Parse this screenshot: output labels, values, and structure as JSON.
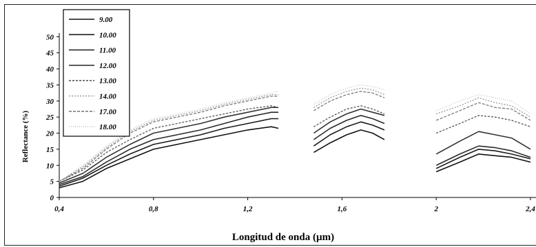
{
  "chart_data": {
    "type": "line",
    "title": "",
    "xlabel": "Longitud de onda (µm)",
    "ylabel": "Reflectance (%)",
    "xlim": [
      0.4,
      2.4
    ],
    "ylim": [
      0,
      55
    ],
    "x_ticks": [
      0.4,
      0.8,
      1.2,
      1.6,
      2.0,
      2.4
    ],
    "x_tick_labels": [
      "0,4",
      "0,8",
      "1,2",
      "1,6",
      "2",
      "2,4"
    ],
    "y_ticks": [
      0,
      5,
      10,
      15,
      20,
      25,
      30,
      35,
      40,
      45,
      50
    ],
    "y_tick_labels": [
      "0",
      "5",
      "10",
      "15",
      "20",
      "25",
      "30",
      "35",
      "40",
      "45",
      "50"
    ],
    "grid": false,
    "legend_position": "top-left",
    "gaps_um": [
      [
        1.35,
        1.48
      ],
      [
        1.8,
        2.0
      ]
    ],
    "series": [
      {
        "name": "9.00",
        "x": [
          0.4,
          0.5,
          0.6,
          0.7,
          0.8,
          0.9,
          1.0,
          1.1,
          1.2,
          1.3,
          1.33,
          1.48,
          1.55,
          1.62,
          1.68,
          1.73,
          1.78,
          2.0,
          2.1,
          2.18,
          2.25,
          2.32,
          2.4
        ],
        "y": [
          3,
          5,
          9,
          12,
          15,
          16.5,
          18,
          19.5,
          21,
          22,
          21.5,
          14,
          17,
          19.5,
          21,
          20,
          18,
          8,
          11,
          13.5,
          13,
          12.5,
          11
        ]
      },
      {
        "name": "10.00",
        "x": [
          0.4,
          0.5,
          0.6,
          0.7,
          0.8,
          0.9,
          1.0,
          1.1,
          1.2,
          1.3,
          1.33,
          1.48,
          1.55,
          1.62,
          1.68,
          1.73,
          1.78,
          2.0,
          2.1,
          2.18,
          2.25,
          2.32,
          2.4
        ],
        "y": [
          3.5,
          6,
          10,
          13.5,
          16.5,
          18,
          19.5,
          21.5,
          23,
          24.5,
          24.5,
          16,
          19.5,
          22,
          23.5,
          22.5,
          21,
          9,
          12.5,
          15,
          14.5,
          13.5,
          12
        ]
      },
      {
        "name": "11.00",
        "x": [
          0.4,
          0.5,
          0.6,
          0.7,
          0.8,
          0.9,
          1.0,
          1.1,
          1.2,
          1.3,
          1.33,
          1.48,
          1.55,
          1.62,
          1.68,
          1.73,
          1.78,
          2.0,
          2.1,
          2.18,
          2.25,
          2.32,
          2.4
        ],
        "y": [
          4,
          6.5,
          11,
          15,
          18,
          19.5,
          21,
          23,
          25,
          26.5,
          26.5,
          18,
          21.5,
          24,
          25.5,
          24.5,
          23,
          10,
          13.5,
          16,
          15.5,
          14.5,
          12.5
        ]
      },
      {
        "name": "12.00",
        "x": [
          0.4,
          0.5,
          0.6,
          0.7,
          0.8,
          0.9,
          1.0,
          1.1,
          1.2,
          1.3,
          1.33,
          1.48,
          1.55,
          1.62,
          1.68,
          1.73,
          1.78,
          2.0,
          2.1,
          2.18,
          2.25,
          2.32,
          2.4
        ],
        "y": [
          4.5,
          7.5,
          12.5,
          16.5,
          20,
          21.5,
          23,
          25,
          26.5,
          28,
          28,
          20,
          23.5,
          26,
          27.5,
          26.5,
          25.5,
          13.5,
          17.5,
          20.5,
          19.5,
          18.5,
          15
        ]
      },
      {
        "name": "13.00",
        "x": [
          0.4,
          0.5,
          0.6,
          0.7,
          0.8,
          0.9,
          1.0,
          1.1,
          1.2,
          1.3,
          1.33,
          1.48,
          1.55,
          1.62,
          1.68,
          1.73,
          1.78,
          2.0,
          2.1,
          2.18,
          2.25,
          2.32,
          2.4
        ],
        "y": [
          5,
          8.5,
          14,
          18,
          21.5,
          23,
          24.5,
          26,
          27.5,
          28.5,
          28,
          22,
          25,
          27.5,
          28.5,
          27.5,
          26,
          20,
          23,
          25.5,
          25,
          24,
          22
        ]
      },
      {
        "name": "14.00",
        "x": [
          0.4,
          0.5,
          0.6,
          0.7,
          0.8,
          0.9,
          1.0,
          1.1,
          1.2,
          1.3,
          1.33,
          1.48,
          1.55,
          1.62,
          1.68,
          1.73,
          1.78,
          2.0,
          2.1,
          2.18,
          2.25,
          2.32,
          2.4
        ],
        "y": [
          5,
          9.5,
          15.5,
          20.5,
          24,
          25.5,
          27,
          29,
          30.5,
          32,
          32,
          28,
          31,
          33,
          34,
          33.5,
          32,
          26,
          28.5,
          31,
          29.5,
          28.5,
          25
        ]
      },
      {
        "name": "17.00",
        "x": [
          0.4,
          0.5,
          0.6,
          0.7,
          0.8,
          0.9,
          1.0,
          1.1,
          1.2,
          1.3,
          1.33,
          1.48,
          1.55,
          1.62,
          1.68,
          1.73,
          1.78,
          2.0,
          2.1,
          2.18,
          2.25,
          2.32,
          2.4
        ],
        "y": [
          5,
          9,
          15,
          20,
          23.5,
          25,
          26.5,
          28.5,
          30,
          31.5,
          31.5,
          27,
          30,
          32,
          33,
          32.5,
          31,
          24,
          27,
          29.5,
          28,
          27.5,
          24
        ]
      },
      {
        "name": "18.00",
        "x": [
          0.4,
          0.5,
          0.6,
          0.7,
          0.8,
          0.9,
          1.0,
          1.1,
          1.2,
          1.3,
          1.33,
          1.48,
          1.55,
          1.62,
          1.68,
          1.73,
          1.78,
          2.0,
          2.1,
          2.18,
          2.25,
          2.32,
          2.4
        ],
        "y": [
          5,
          10,
          16,
          21,
          24.5,
          26,
          27.5,
          29.5,
          31,
          32.5,
          33,
          29,
          32,
          34,
          35,
          34.5,
          33.5,
          27,
          30,
          32,
          31,
          30,
          26
        ]
      }
    ],
    "series_colors": [
      "#111111",
      "#1a1a1a",
      "#2a2a2a",
      "#333333",
      "#555555",
      "#9a9a9a",
      "#7a7a7a",
      "#c4c4c4"
    ],
    "series_dash": [
      "",
      "",
      "",
      "",
      "3 2",
      "2 2",
      "4 2",
      "1 2"
    ]
  }
}
